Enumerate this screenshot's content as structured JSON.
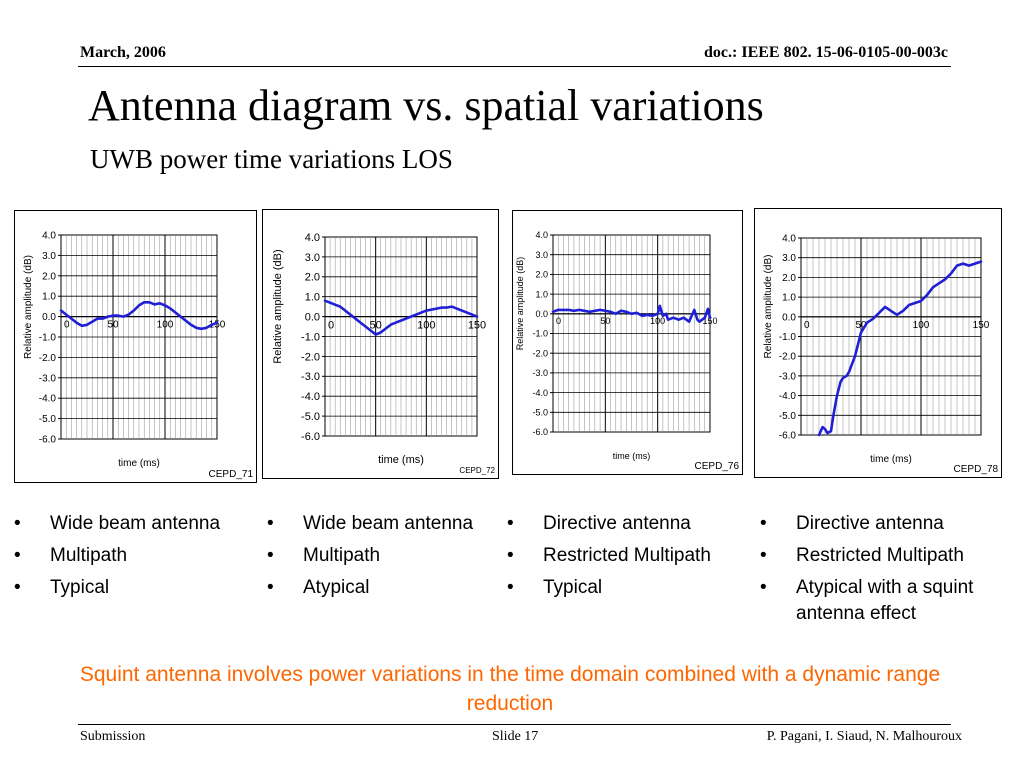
{
  "header": {
    "date": "March, 2006",
    "doc_id": "doc.: IEEE 802. 15-06-0105-00-003c"
  },
  "title": "Antenna diagram vs. spatial variations",
  "subtitle": "UWB power time variations LOS",
  "chart_data": [
    {
      "type": "line",
      "title": "CEPD_71",
      "xlabel": "time (ms)",
      "ylabel": "Relative amplitude (dB)",
      "xlim": [
        0,
        150
      ],
      "ylim": [
        -6,
        4
      ],
      "grid": true,
      "x_ticks": [
        "0",
        "50",
        "100",
        "150"
      ],
      "y_ticks": [
        "4.0",
        "3.0",
        "2.0",
        "1.0",
        "0.0",
        "-1.0",
        "-2.0",
        "-3.0",
        "-4.0",
        "-5.0",
        "-6.0"
      ],
      "series": [
        {
          "color": "#1f1fd6",
          "x": [
            0,
            5,
            10,
            15,
            20,
            25,
            30,
            35,
            40,
            45,
            50,
            55,
            60,
            65,
            70,
            75,
            80,
            85,
            90,
            95,
            100,
            105,
            110,
            115,
            120,
            125,
            130,
            135,
            140,
            145,
            150
          ],
          "y": [
            0.3,
            0.1,
            -0.1,
            -0.3,
            -0.45,
            -0.4,
            -0.25,
            -0.1,
            -0.1,
            0.0,
            0.05,
            0.05,
            0.0,
            0.1,
            0.3,
            0.55,
            0.7,
            0.7,
            0.6,
            0.65,
            0.55,
            0.4,
            0.2,
            0.0,
            -0.2,
            -0.4,
            -0.55,
            -0.6,
            -0.55,
            -0.4,
            -0.3
          ]
        }
      ]
    },
    {
      "type": "line",
      "title": "CEPD_72",
      "xlabel": "time (ms)",
      "ylabel": "Relative amplitude (dB)",
      "xlim": [
        0,
        150
      ],
      "ylim": [
        -6,
        4
      ],
      "grid": true,
      "x_ticks": [
        "0",
        "50",
        "100",
        "150"
      ],
      "y_ticks": [
        "4.0",
        "3.0",
        "2.0",
        "1.0",
        "0.0",
        "-1.0",
        "-2.0",
        "-3.0",
        "-4.0",
        "-5.0",
        "-6.0"
      ],
      "series": [
        {
          "color": "#1f1fd6",
          "x": [
            0,
            5,
            10,
            15,
            20,
            25,
            30,
            35,
            40,
            45,
            50,
            55,
            60,
            65,
            70,
            75,
            80,
            85,
            90,
            95,
            100,
            105,
            110,
            115,
            120,
            125,
            130,
            135,
            140,
            145,
            150
          ],
          "y": [
            0.8,
            0.7,
            0.6,
            0.5,
            0.3,
            0.1,
            -0.1,
            -0.3,
            -0.5,
            -0.7,
            -0.9,
            -0.8,
            -0.6,
            -0.4,
            -0.3,
            -0.2,
            -0.1,
            0.0,
            0.1,
            0.2,
            0.3,
            0.35,
            0.4,
            0.45,
            0.45,
            0.5,
            0.4,
            0.3,
            0.2,
            0.1,
            0.0
          ]
        }
      ]
    },
    {
      "type": "line",
      "title": "CEPD_76",
      "xlabel": "time (ms)",
      "ylabel": "Relative amplitude (dB)",
      "xlim": [
        0,
        150
      ],
      "ylim": [
        -6,
        4
      ],
      "grid": true,
      "x_ticks": [
        "0",
        "50",
        "100",
        "150"
      ],
      "y_ticks": [
        "4.0",
        "3.0",
        "2.0",
        "1.0",
        "0.0",
        "-1.0",
        "-2.0",
        "-3.0",
        "-4.0",
        "-5.0",
        "-6.0"
      ],
      "series": [
        {
          "color": "#1f1fd6",
          "x": [
            0,
            5,
            10,
            15,
            20,
            25,
            30,
            35,
            40,
            45,
            50,
            55,
            60,
            65,
            70,
            75,
            80,
            85,
            90,
            95,
            100,
            102,
            105,
            108,
            110,
            115,
            120,
            125,
            130,
            135,
            138,
            140,
            145,
            148,
            150
          ],
          "y": [
            0.1,
            0.2,
            0.2,
            0.2,
            0.15,
            0.2,
            0.15,
            0.1,
            0.15,
            0.2,
            0.15,
            0.1,
            0.0,
            0.15,
            0.1,
            0.0,
            0.05,
            -0.1,
            -0.05,
            -0.1,
            0.0,
            0.4,
            -0.1,
            0.0,
            -0.3,
            -0.2,
            -0.3,
            -0.2,
            -0.4,
            0.2,
            -0.3,
            -0.4,
            -0.2,
            0.25,
            -0.2
          ]
        }
      ]
    },
    {
      "type": "line",
      "title": "CEPD_78",
      "xlabel": "time (ms)",
      "ylabel": "Relative amplitude (dB)",
      "xlim": [
        0,
        150
      ],
      "ylim": [
        -6,
        4
      ],
      "grid": true,
      "x_ticks": [
        "0",
        "50",
        "100",
        "150"
      ],
      "y_ticks": [
        "4.0",
        "3.0",
        "2.0",
        "1.0",
        "0.0",
        "-1.0",
        "-2.0",
        "-3.0",
        "-4.0",
        "-5.0",
        "-6.0"
      ],
      "series": [
        {
          "color": "#1f1fd6",
          "x": [
            15,
            18,
            20,
            22,
            25,
            27,
            30,
            33,
            35,
            38,
            40,
            45,
            50,
            55,
            60,
            65,
            70,
            75,
            80,
            85,
            90,
            95,
            100,
            105,
            110,
            115,
            120,
            125,
            130,
            135,
            140,
            145,
            150
          ],
          "y": [
            -6.0,
            -5.6,
            -5.7,
            -5.9,
            -5.8,
            -5.0,
            -4.0,
            -3.3,
            -3.1,
            -3.0,
            -2.8,
            -2.0,
            -0.8,
            -0.3,
            -0.1,
            0.2,
            0.5,
            0.3,
            0.1,
            0.3,
            0.6,
            0.7,
            0.8,
            1.1,
            1.5,
            1.7,
            1.9,
            2.2,
            2.6,
            2.7,
            2.6,
            2.7,
            2.8
          ]
        }
      ]
    }
  ],
  "columns": [
    {
      "items": [
        "Wide beam antenna",
        "Multipath",
        "Typical"
      ]
    },
    {
      "items": [
        "Wide beam antenna",
        "Multipath",
        "Atypical"
      ]
    },
    {
      "items": [
        "Directive antenna",
        "Restricted Multipath",
        "Typical"
      ]
    },
    {
      "items": [
        "Directive antenna",
        "Restricted Multipath",
        "Atypical with  a squint antenna effect"
      ]
    }
  ],
  "note": "Squint antenna involves power variations in the time domain combined with a dynamic range reduction",
  "footer": {
    "left": "Submission",
    "middle": "Slide 17",
    "right": "P. Pagani, I. Siaud, N. Malhouroux"
  }
}
